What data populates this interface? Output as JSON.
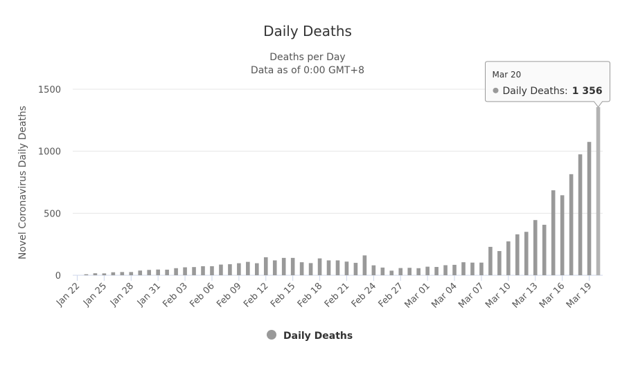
{
  "chart_data": {
    "type": "bar",
    "title": "Daily Deaths",
    "subtitle": [
      "Deaths per Day",
      "Data as of 0:00 GMT+8"
    ],
    "y_label": "Novel Coronavirus Daily Deaths",
    "categories": [
      "Jan 22",
      null,
      null,
      "Jan 25",
      null,
      null,
      "Jan 28",
      null,
      null,
      "Jan 31",
      null,
      null,
      "Feb 03",
      null,
      null,
      "Feb 06",
      null,
      null,
      "Feb 09",
      null,
      null,
      "Feb 12",
      null,
      null,
      "Feb 15",
      null,
      null,
      "Feb 18",
      null,
      null,
      "Feb 21",
      null,
      null,
      "Feb 24",
      null,
      null,
      "Feb 27",
      null,
      null,
      "Mar 01",
      null,
      null,
      "Mar 04",
      null,
      null,
      "Mar 07",
      null,
      null,
      "Mar 10",
      null,
      null,
      "Mar 13",
      null,
      null,
      "Mar 16",
      null,
      null,
      "Mar 19",
      null
    ],
    "series": [
      {
        "name": "Daily Deaths",
        "color": "#999999",
        "values": [
          0,
          8,
          16,
          15,
          24,
          26,
          26,
          38,
          43,
          46,
          45,
          57,
          64,
          66,
          73,
          73,
          86,
          89,
          97,
          108,
          97,
          145,
          120,
          140,
          140,
          105,
          98,
          136,
          120,
          120,
          110,
          100,
          160,
          80,
          62,
          37,
          58,
          60,
          57,
          69,
          67,
          81,
          84,
          105,
          102,
          102,
          229,
          195,
          273,
          330,
          350,
          445,
          407,
          685,
          645,
          815,
          975,
          1075,
          1356
        ]
      }
    ],
    "ylim": [
      0,
      1500
    ],
    "yticks": [
      0,
      500,
      1000,
      1500
    ],
    "grid": true,
    "tooltip": {
      "category": "Mar 20",
      "series_label": "Daily Deaths:",
      "value_label": "1 356"
    }
  }
}
